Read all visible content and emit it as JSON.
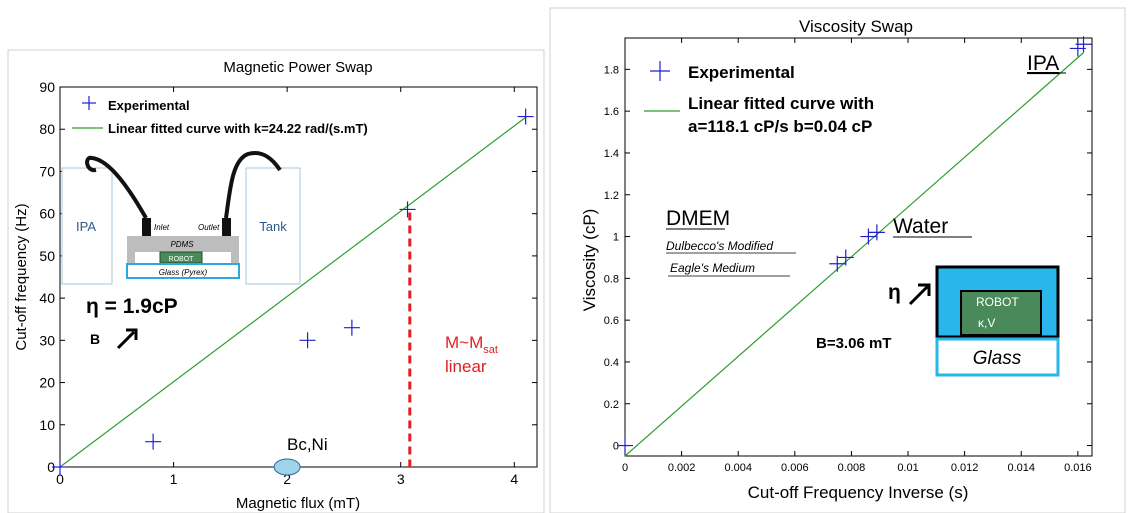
{
  "chart_data": [
    {
      "type": "scatter",
      "title": "Magnetic Power Swap",
      "xlabel": "Magnetic flux (mT)",
      "ylabel": "Cut-off frequency (Hz)",
      "xlim": [
        0,
        4.2
      ],
      "ylim": [
        0,
        90
      ],
      "xticks": [
        0,
        1,
        2,
        3,
        4
      ],
      "yticks": [
        0,
        10,
        20,
        30,
        40,
        50,
        60,
        70,
        80,
        90
      ],
      "grid": false,
      "legend_position": "top-left",
      "series": [
        {
          "name": "Experimental",
          "marker": "+",
          "color": "#1f1fd0",
          "points": [
            [
              0,
              0
            ],
            [
              0.82,
              6
            ],
            [
              2.18,
              30
            ],
            [
              2.57,
              33
            ],
            [
              3.06,
              61
            ],
            [
              4.1,
              83
            ]
          ]
        },
        {
          "name": "Linear fitted curve with k=24.22 rad/(s.mT)",
          "kind": "line",
          "color": "#2e9e2e",
          "points": [
            [
              0,
              0
            ],
            [
              4.1,
              82.8
            ]
          ]
        }
      ],
      "annotations": {
        "eta": "η = 1.9cP",
        "b": "B",
        "msat_main": "M~M",
        "msat_sub": "sat",
        "msat_line2": "linear",
        "bcni": "Bc,Ni",
        "msat_x": 3.08,
        "msat_color": "#e02020",
        "ellipse_color": "#9fd3ea"
      },
      "inset": {
        "ipa": "IPA",
        "tank": "Tank",
        "inlet": "Inlet",
        "outlet": "Outlet",
        "pdms": "PDMS",
        "robot": "ROBOT",
        "glass": "Glass (Pyrex)"
      }
    },
    {
      "type": "scatter",
      "title": "Viscosity Swap",
      "xlabel": "Cut-off Frequency Inverse (s)",
      "ylabel": "Viscosity  (cP)",
      "xlim": [
        0,
        0.0165
      ],
      "ylim": [
        -0.05,
        1.95
      ],
      "xticks": [
        0,
        0.002,
        0.004,
        0.006,
        0.008,
        0.01,
        0.012,
        0.014,
        0.016
      ],
      "xtick_labels": [
        "0",
        "0.002",
        "0.004",
        "0.006",
        "0.008",
        "0.01",
        "0.012",
        "0.014",
        "0.016"
      ],
      "yticks": [
        0,
        0.2,
        0.4,
        0.6,
        0.8,
        1,
        1.2,
        1.4,
        1.6,
        1.8
      ],
      "ytick_labels": [
        "0",
        "0.2",
        "0.4",
        "0.6",
        "0.8",
        "1",
        "1.2",
        "1.4",
        "1.6",
        "1.8"
      ],
      "grid": false,
      "legend_position": "top-left",
      "series": [
        {
          "name": "Experimental",
          "marker": "+",
          "color": "#1f1fd0",
          "points": [
            [
              0,
              0
            ],
            [
              0.0075,
              0.87
            ],
            [
              0.0078,
              0.9
            ],
            [
              0.0086,
              1.0
            ],
            [
              0.0089,
              1.02
            ],
            [
              0.016,
              1.9
            ],
            [
              0.0162,
              1.92
            ]
          ]
        },
        {
          "name": "Linear fitted curve with a=118.1 cP/s b=0.04 cP",
          "legend_lines": [
            "Linear fitted curve with",
            "a=118.1 cP/s b=0.04 cP"
          ],
          "kind": "line",
          "color": "#2e9e2e",
          "points": [
            [
              0,
              -0.05
            ],
            [
              0.0162,
              1.88
            ]
          ]
        }
      ],
      "annotations": {
        "ipa": "IPA",
        "dmem": "DMEM",
        "dmem_sub1": "Dulbecco's Modified",
        "dmem_sub2": "Eagle's Medium",
        "water": "Water",
        "eta": "η",
        "b_field": "B=3.06 mT",
        "robot": "ROBOT",
        "kv": "κ,V",
        "glass": "Glass",
        "fluid_color": "#29b6ea"
      }
    }
  ]
}
